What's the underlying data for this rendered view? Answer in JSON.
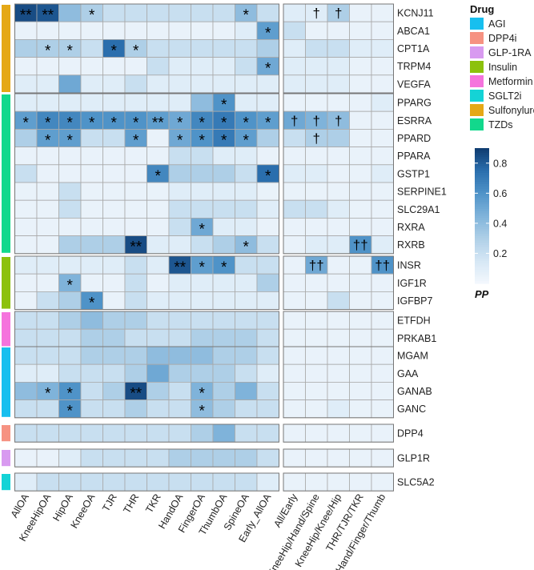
{
  "chart_data": {
    "type": "heatmap",
    "title": "",
    "panel1_columns": [
      "AllOA",
      "KneeHipOA",
      "HipOA",
      "KneeOA",
      "TJR",
      "THR",
      "TKR",
      "HandOA",
      "FingerOA",
      "ThumbOA",
      "SpineOA",
      "Early_AllOA"
    ],
    "panel2_columns": [
      "All/Early",
      "KneeHip/Hand/Spine",
      "KneeHip/Knee/Hip",
      "THR/TJR/TKR",
      "Hand/Finger/Thumb"
    ],
    "groups": [
      {
        "drug": "Sulfonylureas",
        "genes": [
          "KCNJ11",
          "ABCA1",
          "CPT1A",
          "TRPM4",
          "VEGFA"
        ]
      },
      {
        "drug": "TZDs",
        "genes": [
          "PPARG",
          "ESRRA",
          "PPARD",
          "PPARA",
          "GSTP1",
          "SERPINE1",
          "SLC29A1",
          "RXRA",
          "RXRB"
        ]
      },
      {
        "drug": "Insulin",
        "genes": [
          "INSR",
          "IGF1R",
          "IGFBP7"
        ]
      },
      {
        "drug": "Metformin",
        "genes": [
          "ETFDH",
          "PRKAB1"
        ]
      },
      {
        "drug": "AGI",
        "genes": [
          "MGAM",
          "GAA",
          "GANAB",
          "GANC"
        ]
      },
      {
        "drug": "DPP4i",
        "genes": [
          "DPP4"
        ]
      },
      {
        "drug": "GLP-1RA",
        "genes": [
          "GLP1R"
        ]
      },
      {
        "drug": "SGLT2i",
        "genes": [
          "SLC5A2"
        ]
      }
    ],
    "values": {
      "KCNJ11": [
        0.85,
        0.82,
        0.4,
        0.3,
        0.2,
        0.2,
        0.2,
        0.2,
        0.2,
        0.2,
        0.4,
        0.2
      ],
      "ABCA1": [
        0.05,
        0.05,
        0.05,
        0.05,
        0.05,
        0.05,
        0.05,
        0.05,
        0.05,
        0.05,
        0.1,
        0.55
      ],
      "CPT1A": [
        0.3,
        0.3,
        0.3,
        0.2,
        0.75,
        0.3,
        0.2,
        0.2,
        0.2,
        0.2,
        0.2,
        0.3
      ],
      "TRPM4": [
        0.05,
        0.05,
        0.05,
        0.05,
        0.05,
        0.05,
        0.2,
        0.1,
        0.1,
        0.1,
        0.2,
        0.5
      ],
      "VEGFA": [
        0.1,
        0.1,
        0.5,
        0.1,
        0.1,
        0.2,
        0.1,
        0.1,
        0.1,
        0.1,
        0.1,
        0.1
      ],
      "PPARG": [
        0.1,
        0.1,
        0.1,
        0.1,
        0.1,
        0.1,
        0.1,
        0.1,
        0.4,
        0.6,
        0.1,
        0.1
      ],
      "ESRRA": [
        0.55,
        0.65,
        0.65,
        0.6,
        0.6,
        0.6,
        0.55,
        0.5,
        0.65,
        0.7,
        0.6,
        0.55
      ],
      "PPARD": [
        0.3,
        0.55,
        0.55,
        0.2,
        0.2,
        0.55,
        0.05,
        0.5,
        0.6,
        0.7,
        0.55,
        0.3
      ],
      "PPARA": [
        0.05,
        0.05,
        0.05,
        0.05,
        0.05,
        0.05,
        0.05,
        0.2,
        0.2,
        0.1,
        0.1,
        0.05
      ],
      "GSTP1": [
        0.2,
        0.05,
        0.05,
        0.05,
        0.05,
        0.05,
        0.65,
        0.3,
        0.3,
        0.3,
        0.2,
        0.75
      ],
      "SERPINE1": [
        0.05,
        0.05,
        0.2,
        0.05,
        0.05,
        0.05,
        0.05,
        0.1,
        0.1,
        0.1,
        0.1,
        0.05
      ],
      "SLC29A1": [
        0.05,
        0.05,
        0.2,
        0.05,
        0.05,
        0.05,
        0.05,
        0.2,
        0.2,
        0.2,
        0.2,
        0.1
      ],
      "RXRA": [
        0.05,
        0.05,
        0.05,
        0.05,
        0.05,
        0.05,
        0.05,
        0.2,
        0.5,
        0.1,
        0.1,
        0.05
      ],
      "RXRB": [
        0.05,
        0.05,
        0.3,
        0.3,
        0.3,
        0.85,
        0.1,
        0.1,
        0.2,
        0.3,
        0.4,
        0.2
      ],
      "INSR": [
        0.1,
        0.1,
        0.1,
        0.1,
        0.1,
        0.2,
        0.1,
        0.82,
        0.55,
        0.6,
        0.2,
        0.2
      ],
      "IGF1R": [
        0.05,
        0.05,
        0.45,
        0.05,
        0.05,
        0.2,
        0.05,
        0.1,
        0.1,
        0.1,
        0.1,
        0.3
      ],
      "IGFBP7": [
        0.05,
        0.2,
        0.3,
        0.6,
        0.05,
        0.2,
        0.1,
        0.1,
        0.1,
        0.1,
        0.1,
        0.1
      ],
      "ETFDH": [
        0.2,
        0.2,
        0.3,
        0.4,
        0.3,
        0.3,
        0.2,
        0.2,
        0.2,
        0.2,
        0.2,
        0.2
      ],
      "PRKAB1": [
        0.2,
        0.2,
        0.2,
        0.3,
        0.3,
        0.2,
        0.2,
        0.2,
        0.3,
        0.3,
        0.3,
        0.2
      ],
      "MGAM": [
        0.2,
        0.2,
        0.2,
        0.3,
        0.3,
        0.3,
        0.4,
        0.4,
        0.4,
        0.3,
        0.3,
        0.2
      ],
      "GAA": [
        0.1,
        0.1,
        0.2,
        0.2,
        0.2,
        0.3,
        0.5,
        0.3,
        0.3,
        0.3,
        0.2,
        0.1
      ],
      "GANAB": [
        0.4,
        0.45,
        0.6,
        0.2,
        0.3,
        0.85,
        0.3,
        0.2,
        0.45,
        0.3,
        0.45,
        0.2
      ],
      "GANC": [
        0.2,
        0.2,
        0.6,
        0.2,
        0.2,
        0.3,
        0.2,
        0.2,
        0.4,
        0.3,
        0.2,
        0.2
      ],
      "DPP4": [
        0.2,
        0.2,
        0.2,
        0.2,
        0.2,
        0.2,
        0.2,
        0.2,
        0.3,
        0.45,
        0.2,
        0.2
      ],
      "GLP1R": [
        0.05,
        0.05,
        0.1,
        0.2,
        0.2,
        0.2,
        0.2,
        0.3,
        0.3,
        0.3,
        0.3,
        0.2
      ],
      "SLC5A2": [
        0.1,
        0.2,
        0.2,
        0.2,
        0.2,
        0.2,
        0.2,
        0.2,
        0.2,
        0.2,
        0.2,
        0.1
      ]
    },
    "values_panel2": {
      "KCNJ11": [
        0.1,
        0.1,
        0.3,
        0.05,
        0.05
      ],
      "ABCA1": [
        0.2,
        0.05,
        0.05,
        0.05,
        0.05
      ],
      "CPT1A": [
        0.1,
        0.2,
        0.2,
        0.1,
        0.1
      ],
      "TRPM4": [
        0.1,
        0.1,
        0.1,
        0.05,
        0.05
      ],
      "VEGFA": [
        0.1,
        0.1,
        0.1,
        0.05,
        0.05
      ],
      "PPARG": [
        0.05,
        0.05,
        0.05,
        0.05,
        0.1
      ],
      "ESRRA": [
        0.5,
        0.45,
        0.4,
        0.05,
        0.05
      ],
      "PPARD": [
        0.2,
        0.3,
        0.3,
        0.05,
        0.05
      ],
      "PPARA": [
        0.05,
        0.05,
        0.05,
        0.05,
        0.05
      ],
      "GSTP1": [
        0.1,
        0.1,
        0.05,
        0.05,
        0.1
      ],
      "SERPINE1": [
        0.05,
        0.05,
        0.05,
        0.05,
        0.05
      ],
      "SLC29A1": [
        0.2,
        0.2,
        0.1,
        0.05,
        0.05
      ],
      "RXRA": [
        0.05,
        0.05,
        0.05,
        0.05,
        0.05
      ],
      "RXRB": [
        0.05,
        0.1,
        0.1,
        0.6,
        0.1
      ],
      "INSR": [
        0.05,
        0.5,
        0.05,
        0.05,
        0.6
      ],
      "IGF1R": [
        0.05,
        0.05,
        0.05,
        0.05,
        0.05
      ],
      "IGFBP7": [
        0.05,
        0.05,
        0.2,
        0.05,
        0.05
      ],
      "ETFDH": [
        0.05,
        0.05,
        0.05,
        0.05,
        0.05
      ],
      "PRKAB1": [
        0.05,
        0.05,
        0.05,
        0.05,
        0.05
      ],
      "MGAM": [
        0.05,
        0.05,
        0.05,
        0.05,
        0.05
      ],
      "GAA": [
        0.05,
        0.05,
        0.05,
        0.05,
        0.05
      ],
      "GANAB": [
        0.05,
        0.05,
        0.05,
        0.05,
        0.05
      ],
      "GANC": [
        0.05,
        0.05,
        0.1,
        0.05,
        0.05
      ],
      "DPP4": [
        0.05,
        0.05,
        0.05,
        0.05,
        0.05
      ],
      "GLP1R": [
        0.05,
        0.05,
        0.05,
        0.05,
        0.05
      ],
      "SLC5A2": [
        0.05,
        0.05,
        0.05,
        0.05,
        0.05
      ]
    },
    "annotations_panel1": {
      "KCNJ11": {
        "0": "**",
        "1": "**",
        "3": "*",
        "10": "*"
      },
      "ABCA1": {
        "11": "*"
      },
      "CPT1A": {
        "1": "*",
        "2": "*",
        "4": "*",
        "5": "*"
      },
      "TRPM4": {
        "11": "*"
      },
      "PPARG": {
        "9": "*"
      },
      "ESRRA": {
        "0": "*",
        "1": "*",
        "2": "*",
        "3": "*",
        "4": "*",
        "5": "*",
        "6": "**",
        "7": "*",
        "8": "*",
        "9": "*",
        "10": "*",
        "11": "*"
      },
      "PPARD": {
        "1": "*",
        "2": "*",
        "5": "*",
        "7": "*",
        "8": "*",
        "9": "*",
        "10": "*"
      },
      "GSTP1": {
        "6": "*",
        "11": "*"
      },
      "RXRA": {
        "8": "*"
      },
      "RXRB": {
        "5": "**",
        "10": "*"
      },
      "INSR": {
        "7": "**",
        "8": "*",
        "9": "*"
      },
      "IGF1R": {
        "2": "*"
      },
      "IGFBP7": {
        "3": "*"
      },
      "GANAB": {
        "1": "*",
        "2": "*",
        "5": "**",
        "8": "*"
      },
      "GANC": {
        "2": "*",
        "8": "*"
      }
    },
    "annotations_panel2": {
      "KCNJ11": {
        "1": "†",
        "2": "†"
      },
      "ESRRA": {
        "0": "†",
        "1": "†",
        "2": "†"
      },
      "PPARD": {
        "1": "†"
      },
      "RXRB": {
        "3": "††"
      },
      "INSR": {
        "1": "††",
        "4": "††"
      }
    },
    "legend": {
      "drug_title": "Drug",
      "drug_items": [
        {
          "name": "AGI",
          "color": "#17bfef"
        },
        {
          "name": "DPP4i",
          "color": "#f69282"
        },
        {
          "name": "GLP-1RA",
          "color": "#d89af0"
        },
        {
          "name": "Insulin",
          "color": "#8cc10d"
        },
        {
          "name": "Metformin",
          "color": "#f573dd"
        },
        {
          "name": "SGLT2i",
          "color": "#14d3d6"
        },
        {
          "name": "Sulfonylureas",
          "color": "#e5a816"
        },
        {
          "name": "TZDs",
          "color": "#12d88c"
        }
      ],
      "colorbar_title": "PP",
      "colorbar_ticks": [
        0.2,
        0.4,
        0.6,
        0.8
      ],
      "colorbar_range": [
        0,
        0.9
      ]
    },
    "palette": [
      "#f3f8fd",
      "#d5e7f5",
      "#aecfe7",
      "#7fb3da",
      "#4f93c8",
      "#2a6ead",
      "#0f3b6f"
    ],
    "grid_color": "#a9a9a9",
    "grid": true,
    "legend_placement": "right"
  }
}
